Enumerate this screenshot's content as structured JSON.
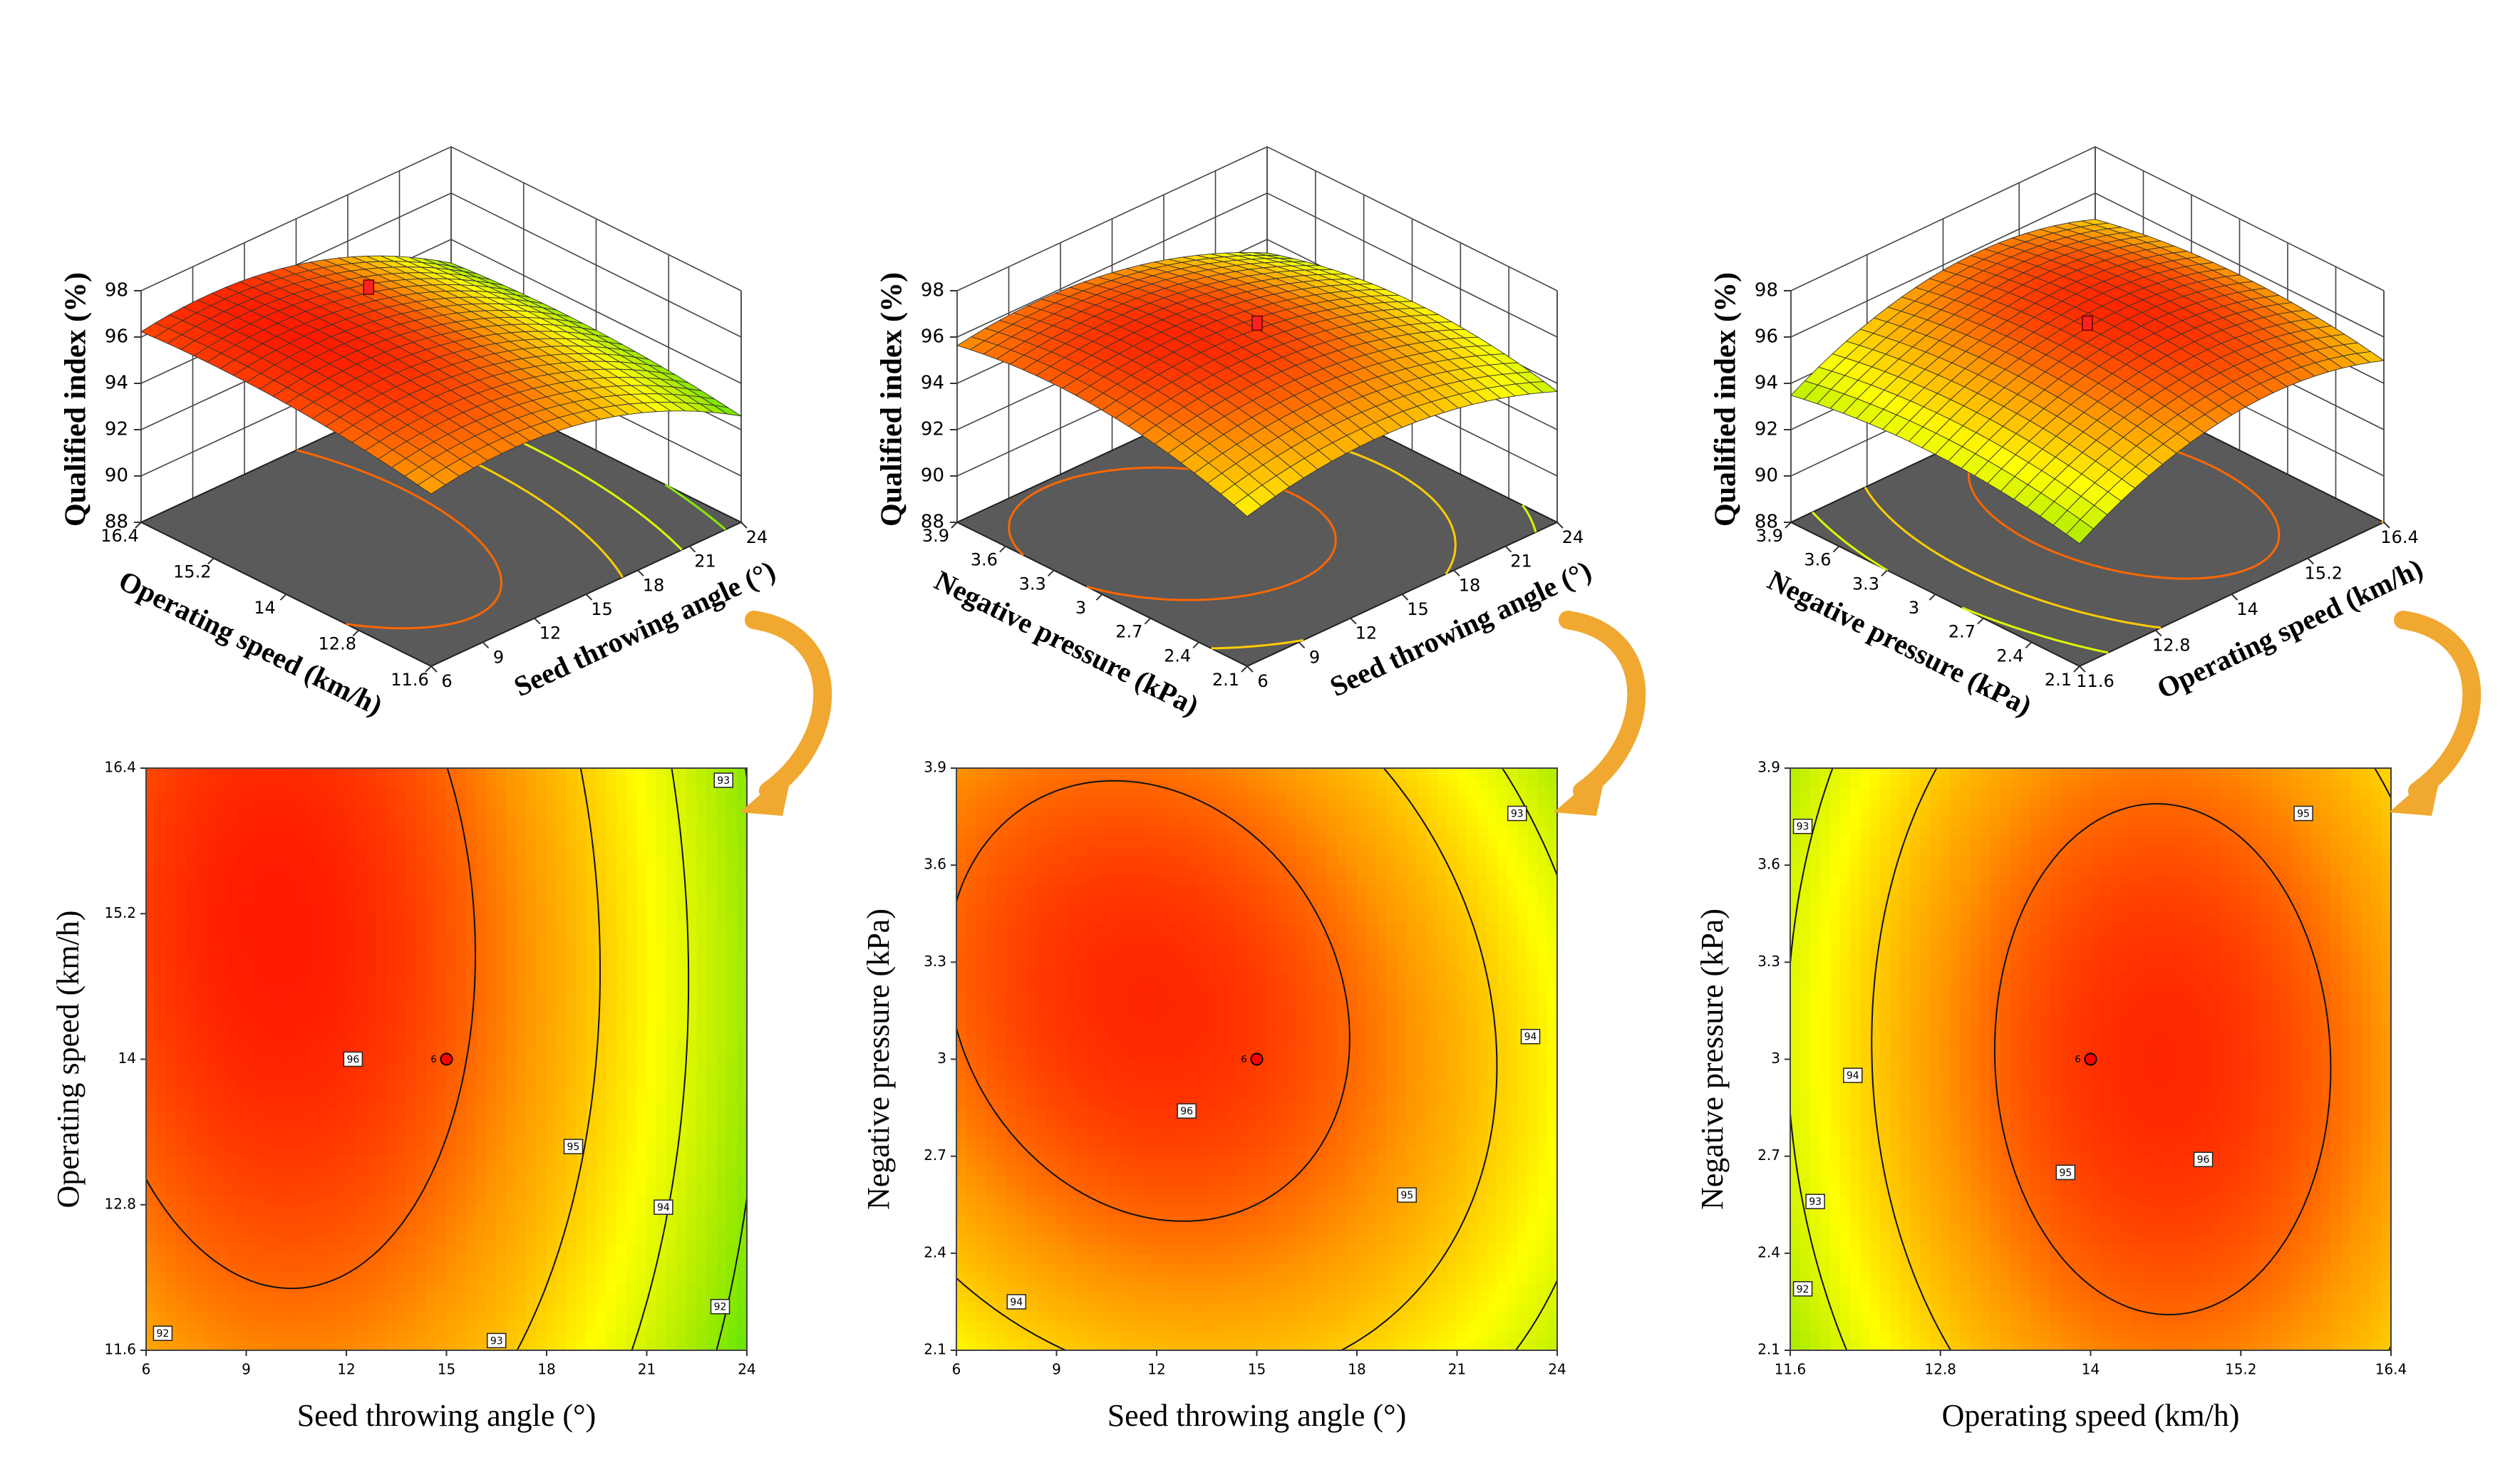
{
  "colors": {
    "low": "#00e000",
    "mid": "#ffff00",
    "high": "#ff0000",
    "floor": "#5a5a5a",
    "arrow": "#f0a830",
    "design_point": "#ff0000"
  },
  "chart_data": [
    {
      "type": "surface",
      "id": "s1",
      "zlabel": "Qualified index (%)",
      "zticks": [
        "88",
        "90",
        "92",
        "94",
        "96",
        "98"
      ],
      "zlim": [
        88,
        98
      ],
      "xlabel": "Seed throwing angle (°)",
      "xticks": [
        "6",
        "9",
        "12",
        "15",
        "18",
        "21",
        "24"
      ],
      "ylabel": "Operating speed (km/h)",
      "yticks": [
        "11.6",
        "12.8",
        "14",
        "15.2",
        "16.4"
      ],
      "model": {
        "a": [
          6,
          24
        ],
        "b": [
          11.6,
          16.4
        ],
        "peak": 96.6,
        "ca": 0.22,
        "cb": 0.72,
        "ka": 5.6,
        "kb": 1.6,
        "kab": 0.4
      },
      "contour_levels": [
        92,
        93,
        94,
        95,
        96
      ]
    },
    {
      "type": "surface",
      "id": "s2",
      "zlabel": "Qualified index (%)",
      "zticks": [
        "88",
        "90",
        "92",
        "94",
        "96",
        "98"
      ],
      "zlim": [
        88,
        98
      ],
      "xlabel": "Seed throwing angle (°)",
      "xticks": [
        "6",
        "9",
        "12",
        "15",
        "18",
        "21",
        "24"
      ],
      "ylabel": "Negative pressure (kPa)",
      "yticks": [
        "2.1",
        "2.4",
        "2.7",
        "3",
        "3.3",
        "3.6",
        "3.9"
      ],
      "model": {
        "a": [
          6,
          24
        ],
        "b": [
          2.1,
          3.9
        ],
        "peak": 96.5,
        "ca": 0.32,
        "cb": 0.6,
        "ka": 4.6,
        "kb": 3.6,
        "kab": 1.4
      },
      "contour_levels": [
        93,
        94,
        95,
        96
      ]
    },
    {
      "type": "surface",
      "id": "s3",
      "zlabel": "Qualified index (%)",
      "zticks": [
        "88",
        "90",
        "92",
        "94",
        "96",
        "98"
      ],
      "zlim": [
        88,
        98
      ],
      "xlabel": "Operating speed (km/h)",
      "xticks": [
        "11.6",
        "12.8",
        "14",
        "15.2",
        "16.4"
      ],
      "ylabel": "Negative pressure (kPa)",
      "yticks": [
        "2.1",
        "2.4",
        "2.7",
        "3",
        "3.3",
        "3.6",
        "3.9"
      ],
      "model": {
        "a": [
          11.6,
          16.4
        ],
        "b": [
          2.1,
          3.9
        ],
        "peak": 96.5,
        "ca": 0.62,
        "cb": 0.5,
        "ka": 6.4,
        "kb": 2.6,
        "kab": 0.3
      },
      "contour_levels": [
        92,
        93,
        94,
        95,
        96
      ]
    },
    {
      "type": "contour",
      "id": "c1",
      "xlabel": "Seed throwing angle (°)",
      "xticks": [
        "6",
        "9",
        "12",
        "15",
        "18",
        "21",
        "24"
      ],
      "ylabel": "Operating speed (km/h)",
      "yticks": [
        "11.6",
        "12.8",
        "14",
        "15.2",
        "16.4"
      ],
      "model": {
        "a": [
          6,
          24
        ],
        "b": [
          11.6,
          16.4
        ],
        "peak": 96.6,
        "ca": 0.22,
        "cb": 0.72,
        "ka": 5.6,
        "kb": 1.6,
        "kab": 0.4
      },
      "contour_levels": [
        92,
        93,
        94,
        95,
        96
      ],
      "contour_labels": [
        {
          "text": "96",
          "x": 12.2,
          "y": 14
        },
        {
          "text": "95",
          "x": 18.8,
          "y": 13.28
        },
        {
          "text": "94",
          "x": 21.5,
          "y": 12.78
        },
        {
          "text": "93",
          "x": 16.5,
          "y": 11.68
        },
        {
          "text": "93",
          "x": 23.3,
          "y": 16.3
        },
        {
          "text": "92",
          "x": 6.5,
          "y": 11.74
        },
        {
          "text": "92",
          "x": 23.2,
          "y": 11.96
        }
      ],
      "design_point": {
        "x": 15,
        "y": 14,
        "label": "6"
      }
    },
    {
      "type": "contour",
      "id": "c2",
      "xlabel": "Seed throwing angle (°)",
      "xticks": [
        "6",
        "9",
        "12",
        "15",
        "18",
        "21",
        "24"
      ],
      "ylabel": "Negative pressure (kPa)",
      "yticks": [
        "2.1",
        "2.4",
        "2.7",
        "3",
        "3.3",
        "3.6",
        "3.9"
      ],
      "model": {
        "a": [
          6,
          24
        ],
        "b": [
          2.1,
          3.9
        ],
        "peak": 96.5,
        "ca": 0.32,
        "cb": 0.6,
        "ka": 4.6,
        "kb": 3.6,
        "kab": 1.4
      },
      "contour_levels": [
        93,
        94,
        95,
        96
      ],
      "contour_labels": [
        {
          "text": "96",
          "x": 12.9,
          "y": 2.84
        },
        {
          "text": "95",
          "x": 19.5,
          "y": 2.58
        },
        {
          "text": "94",
          "x": 23.2,
          "y": 3.07
        },
        {
          "text": "94",
          "x": 7.8,
          "y": 2.25
        },
        {
          "text": "93",
          "x": 22.8,
          "y": 3.76
        }
      ],
      "design_point": {
        "x": 15,
        "y": 3,
        "label": "6"
      }
    },
    {
      "type": "contour",
      "id": "c3",
      "xlabel": "Operating speed (km/h)",
      "xticks": [
        "11.6",
        "12.8",
        "14",
        "15.2",
        "16.4"
      ],
      "ylabel": "Negative pressure (kPa)",
      "yticks": [
        "2.1",
        "2.4",
        "2.7",
        "3",
        "3.3",
        "3.6",
        "3.9"
      ],
      "model": {
        "a": [
          11.6,
          16.4
        ],
        "b": [
          2.1,
          3.9
        ],
        "peak": 96.5,
        "ca": 0.62,
        "cb": 0.5,
        "ka": 6.4,
        "kb": 2.6,
        "kab": 0.3
      },
      "contour_levels": [
        92,
        93,
        94,
        95,
        96
      ],
      "contour_labels": [
        {
          "text": "96",
          "x": 14.9,
          "y": 2.69
        },
        {
          "text": "95",
          "x": 15.7,
          "y": 3.76
        },
        {
          "text": "95",
          "x": 13.8,
          "y": 2.65
        },
        {
          "text": "94",
          "x": 12.1,
          "y": 2.95
        },
        {
          "text": "93",
          "x": 11.8,
          "y": 2.56
        },
        {
          "text": "93",
          "x": 11.7,
          "y": 3.72
        },
        {
          "text": "92",
          "x": 11.7,
          "y": 2.29
        }
      ],
      "design_point": {
        "x": 14,
        "y": 3,
        "label": "6"
      }
    }
  ]
}
